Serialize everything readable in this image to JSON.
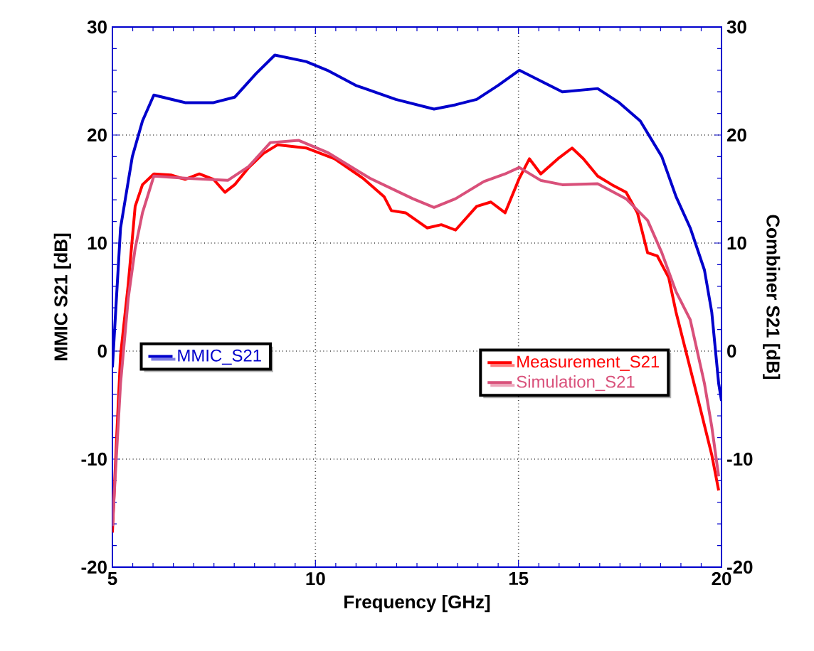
{
  "chart_data": {
    "type": "line",
    "xlabel": "Frequency [GHz]",
    "ylabel": "MMIC S21 [dB]",
    "y2label": "Combiner S21 [dB]",
    "xlim": [
      5,
      20
    ],
    "xticks": [
      5,
      10,
      15,
      20
    ],
    "ylim": [
      -20,
      30
    ],
    "yticks": [
      -20,
      -10,
      0,
      10,
      20,
      30
    ],
    "y2lim": [
      -20,
      30
    ],
    "y2ticks": [
      -20,
      -10,
      0,
      10,
      20,
      30
    ],
    "grid": true,
    "legend": "left",
    "marker": "none",
    "line_style": "solid",
    "series": [
      {
        "name": "MMIC_S21",
        "color": "#0000cc",
        "x": [
          5,
          5.2,
          5.49,
          5.74,
          6.02,
          6.79,
          7.49,
          8.01,
          8.54,
          9.0,
          9.77,
          10.29,
          10.99,
          11.98,
          12.92,
          13.45,
          13.97,
          14.5,
          15.02,
          15.55,
          16.08,
          16.95,
          17.48,
          18.0,
          18.53,
          18.88,
          19.23,
          19.58,
          19.76,
          19.93,
          20
        ],
        "values": [
          -1.5,
          11.4,
          18,
          21.3,
          23.7,
          23,
          23,
          23.5,
          25.7,
          27.4,
          26.8,
          26,
          24.6,
          23.3,
          22.4,
          22.8,
          23.3,
          24.6,
          26,
          25,
          24,
          24.3,
          23,
          21.3,
          18,
          14.3,
          11.4,
          7.5,
          3.6,
          -3,
          -4.6
        ]
      },
      {
        "name": "Measurement_S21",
        "color": "#ff0000",
        "axis": "y2",
        "x": [
          5,
          5.1,
          5.2,
          5.39,
          5.56,
          5.74,
          6.02,
          6.44,
          6.79,
          7.14,
          7.49,
          7.77,
          8.01,
          8.36,
          8.72,
          9.07,
          9.77,
          10.47,
          11.17,
          11.69,
          11.87,
          12.22,
          12.75,
          13.1,
          13.45,
          13.97,
          14.32,
          14.67,
          15.02,
          15.27,
          15.55,
          15.97,
          16.32,
          16.6,
          16.95,
          17.3,
          17.65,
          17.93,
          18.18,
          18.42,
          18.7,
          18.88,
          19.41,
          19.76,
          19.93
        ],
        "values": [
          -16.8,
          -8.3,
          -0.4,
          6.2,
          13.4,
          15.4,
          16.4,
          16.3,
          15.9,
          16.4,
          15.9,
          14.7,
          15.4,
          17,
          18.3,
          19.1,
          18.8,
          17.8,
          16,
          14.3,
          13,
          12.8,
          11.4,
          11.7,
          11.2,
          13.4,
          13.8,
          12.8,
          16,
          17.8,
          16.4,
          17.8,
          18.8,
          17.8,
          16.2,
          15.4,
          14.7,
          12.8,
          9.1,
          8.8,
          6.8,
          3.6,
          -4.3,
          -9.6,
          -12.9
        ]
      },
      {
        "name": "Simulation_S21",
        "color": "#d9507a",
        "axis": "y2",
        "x": [
          5,
          5.2,
          5.39,
          5.56,
          5.74,
          6.02,
          6.79,
          7.84,
          8.36,
          8.89,
          9.59,
          10.29,
          11.34,
          12.4,
          12.92,
          13.45,
          14.15,
          14.67,
          15.02,
          15.55,
          16.08,
          16.95,
          17.65,
          18.18,
          18.53,
          18.88,
          19.23,
          19.58,
          19.76,
          19.93
        ],
        "values": [
          -16.2,
          -3,
          4.9,
          9.5,
          12.8,
          16.2,
          16,
          15.8,
          17.1,
          19.3,
          19.5,
          18.4,
          16,
          14.1,
          13.3,
          14.1,
          15.7,
          16.4,
          17,
          15.8,
          15.4,
          15.5,
          14.1,
          12.1,
          9.1,
          5.5,
          2.9,
          -3,
          -7,
          -11.6
        ]
      }
    ]
  }
}
